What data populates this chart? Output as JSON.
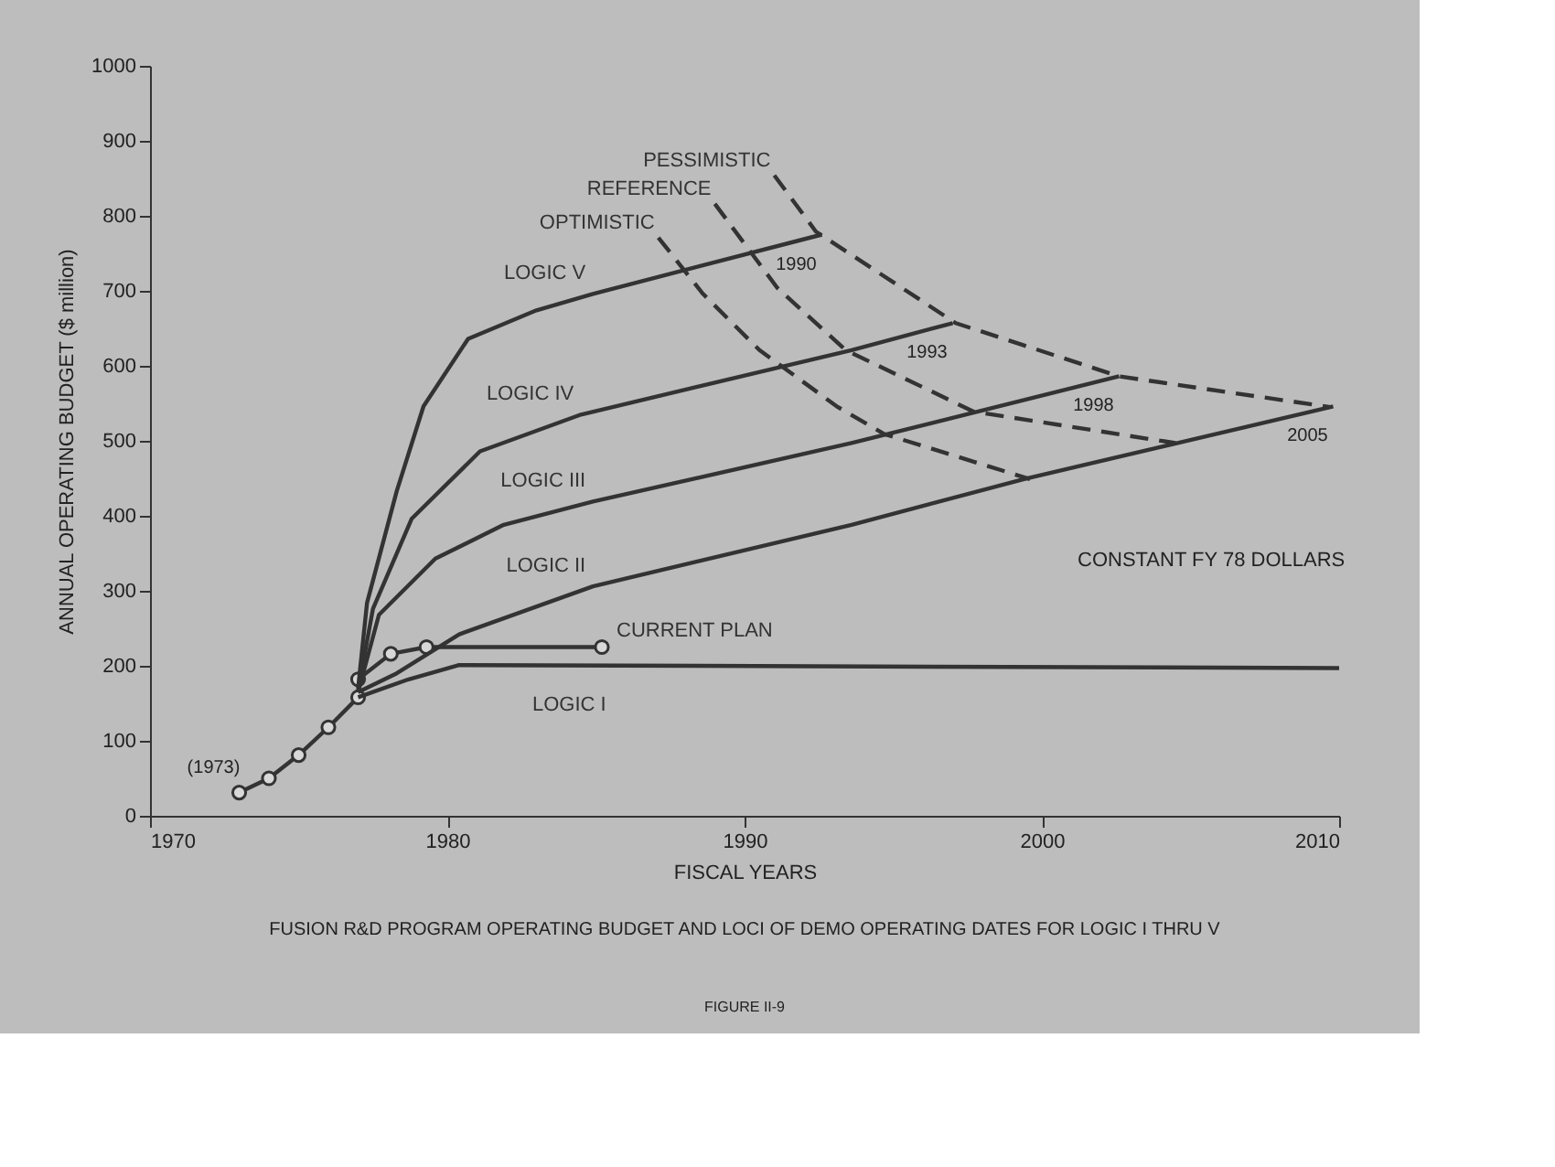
{
  "chart_data": {
    "type": "line",
    "xlabel": "FISCAL YEARS",
    "ylabel": "ANNUAL OPERATING BUDGET ($ million)",
    "xlim": [
      1970,
      2010
    ],
    "xticks": [
      1970,
      1980,
      1990,
      2000,
      2010
    ],
    "ylim": [
      0,
      1000
    ],
    "yticks": [
      0,
      100,
      200,
      300,
      400,
      500,
      600,
      700,
      800,
      900,
      1000
    ],
    "grid": false,
    "line_style": "solid",
    "marker": "none",
    "series": [
      {
        "name": null,
        "color": "#333333",
        "marker": "circle",
        "x": [
          1973.0,
          1974.0,
          1975.0,
          1976.0,
          1977.0
        ],
        "values": [
          31,
          50,
          81,
          118,
          158
        ]
      },
      {
        "name": "CURRENT PLAN",
        "color": "#333333",
        "marker": "circle",
        "x": [
          1977.0,
          1978.1,
          1979.3,
          1985.2
        ],
        "values": [
          182,
          216,
          225,
          225
        ]
      },
      {
        "name": "LOGIC I",
        "color": "#333333",
        "x": [
          1977.0,
          1978.7,
          1980.4,
          2010.0
        ],
        "values": [
          158,
          182,
          201,
          197
        ]
      },
      {
        "name": "LOGIC II",
        "color": "#333333",
        "x": [
          1977.0,
          1978.3,
          1980.4,
          1984.9,
          1993.6,
          1999.4,
          2009.8
        ],
        "values": [
          165,
          190,
          242,
          306,
          388,
          449,
          546
        ]
      },
      {
        "name": "LOGIC III",
        "color": "#333333",
        "x": [
          1977.0,
          1977.7,
          1979.6,
          1981.9,
          1984.9,
          1993.6,
          2002.6
        ],
        "values": [
          165,
          268,
          343,
          388,
          419,
          497,
          586
        ]
      },
      {
        "name": "LOGIC IV",
        "color": "#333333",
        "x": [
          1977.0,
          1977.5,
          1978.8,
          1981.1,
          1984.5,
          1993.6,
          1997.0
        ],
        "values": [
          168,
          276,
          396,
          486,
          535,
          621,
          657
        ]
      },
      {
        "name": "LOGIC V",
        "color": "#333333",
        "x": [
          1977.0,
          1977.3,
          1978.3,
          1979.2,
          1980.7,
          1983.0,
          1984.9,
          1992.6
        ],
        "values": [
          170,
          284,
          433,
          546,
          636,
          674,
          696,
          775
        ]
      },
      {
        "name": "OPTIMISTIC",
        "color": "#333333",
        "line_style": "dashed",
        "x": [
          1987.1,
          1988.6,
          1990.5,
          1993.1,
          1994.7,
          1999.6
        ],
        "values": [
          771,
          696,
          621,
          546,
          509,
          449
        ]
      },
      {
        "name": "REFERENCE",
        "color": "#333333",
        "line_style": "dashed",
        "x": [
          1989.0,
          1991.1,
          1993.4,
          1997.7,
          2004.5
        ],
        "values": [
          816,
          704,
          621,
          539,
          497
        ]
      },
      {
        "name": "PESSIMISTIC",
        "color": "#333333",
        "line_style": "dashed",
        "x": [
          1991.0,
          1992.4,
          1997.1,
          2002.6,
          2009.7
        ],
        "values": [
          854,
          779,
          657,
          586,
          545
        ]
      }
    ],
    "annotations": [
      {
        "text": "(1973)",
        "x": 1973.0,
        "y": 31
      },
      {
        "text": "1990",
        "x": 1992.6,
        "y": 775
      },
      {
        "text": "1993",
        "x": 1997.0,
        "y": 657
      },
      {
        "text": "1998",
        "x": 2002.6,
        "y": 586
      },
      {
        "text": "2005",
        "x": 2009.8,
        "y": 546
      },
      "CONSTANT FY 78 DOLLARS",
      "FUSION R&D PROGRAM OPERATING BUDGET AND LOCI OF DEMO OPERATING DATES FOR LOGIC I THRU V",
      "FIGURE II-9"
    ]
  }
}
